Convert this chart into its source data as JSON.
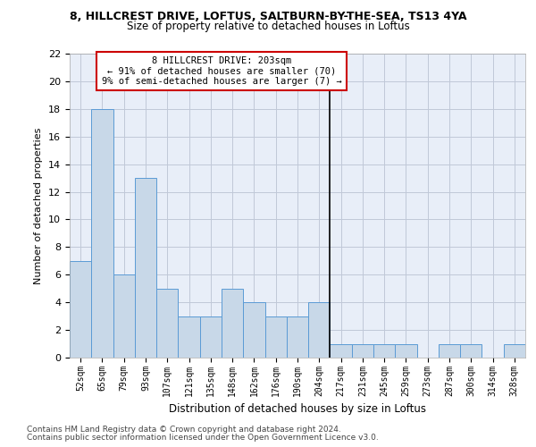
{
  "title1": "8, HILLCREST DRIVE, LOFTUS, SALTBURN-BY-THE-SEA, TS13 4YA",
  "title2": "Size of property relative to detached houses in Loftus",
  "xlabel": "Distribution of detached houses by size in Loftus",
  "ylabel": "Number of detached properties",
  "categories": [
    "52sqm",
    "65sqm",
    "79sqm",
    "93sqm",
    "107sqm",
    "121sqm",
    "135sqm",
    "148sqm",
    "162sqm",
    "176sqm",
    "190sqm",
    "204sqm",
    "217sqm",
    "231sqm",
    "245sqm",
    "259sqm",
    "273sqm",
    "287sqm",
    "300sqm",
    "314sqm",
    "328sqm"
  ],
  "values": [
    7,
    18,
    6,
    13,
    5,
    3,
    3,
    5,
    4,
    3,
    3,
    4,
    1,
    1,
    1,
    1,
    0,
    1,
    1,
    0,
    1
  ],
  "bar_color": "#c8d8e8",
  "bar_edge_color": "#5b9bd5",
  "vline_x": 11.5,
  "vline_color": "#000000",
  "annotation_text": "8 HILLCREST DRIVE: 203sqm\n← 91% of detached houses are smaller (70)\n9% of semi-detached houses are larger (7) →",
  "annotation_box_facecolor": "#ffffff",
  "annotation_box_edgecolor": "#cc0000",
  "ylim": [
    0,
    22
  ],
  "yticks": [
    0,
    2,
    4,
    6,
    8,
    10,
    12,
    14,
    16,
    18,
    20,
    22
  ],
  "grid_color": "#c0c8d8",
  "plot_bg_color": "#e8eef8",
  "fig_bg_color": "#ffffff",
  "footer1": "Contains HM Land Registry data © Crown copyright and database right 2024.",
  "footer2": "Contains public sector information licensed under the Open Government Licence v3.0.",
  "title1_fontsize": 9,
  "title2_fontsize": 8.5,
  "xlabel_fontsize": 8.5,
  "ylabel_fontsize": 8,
  "ytick_fontsize": 8,
  "xtick_fontsize": 7,
  "annotation_fontsize": 7.5,
  "footer_fontsize": 6.5
}
